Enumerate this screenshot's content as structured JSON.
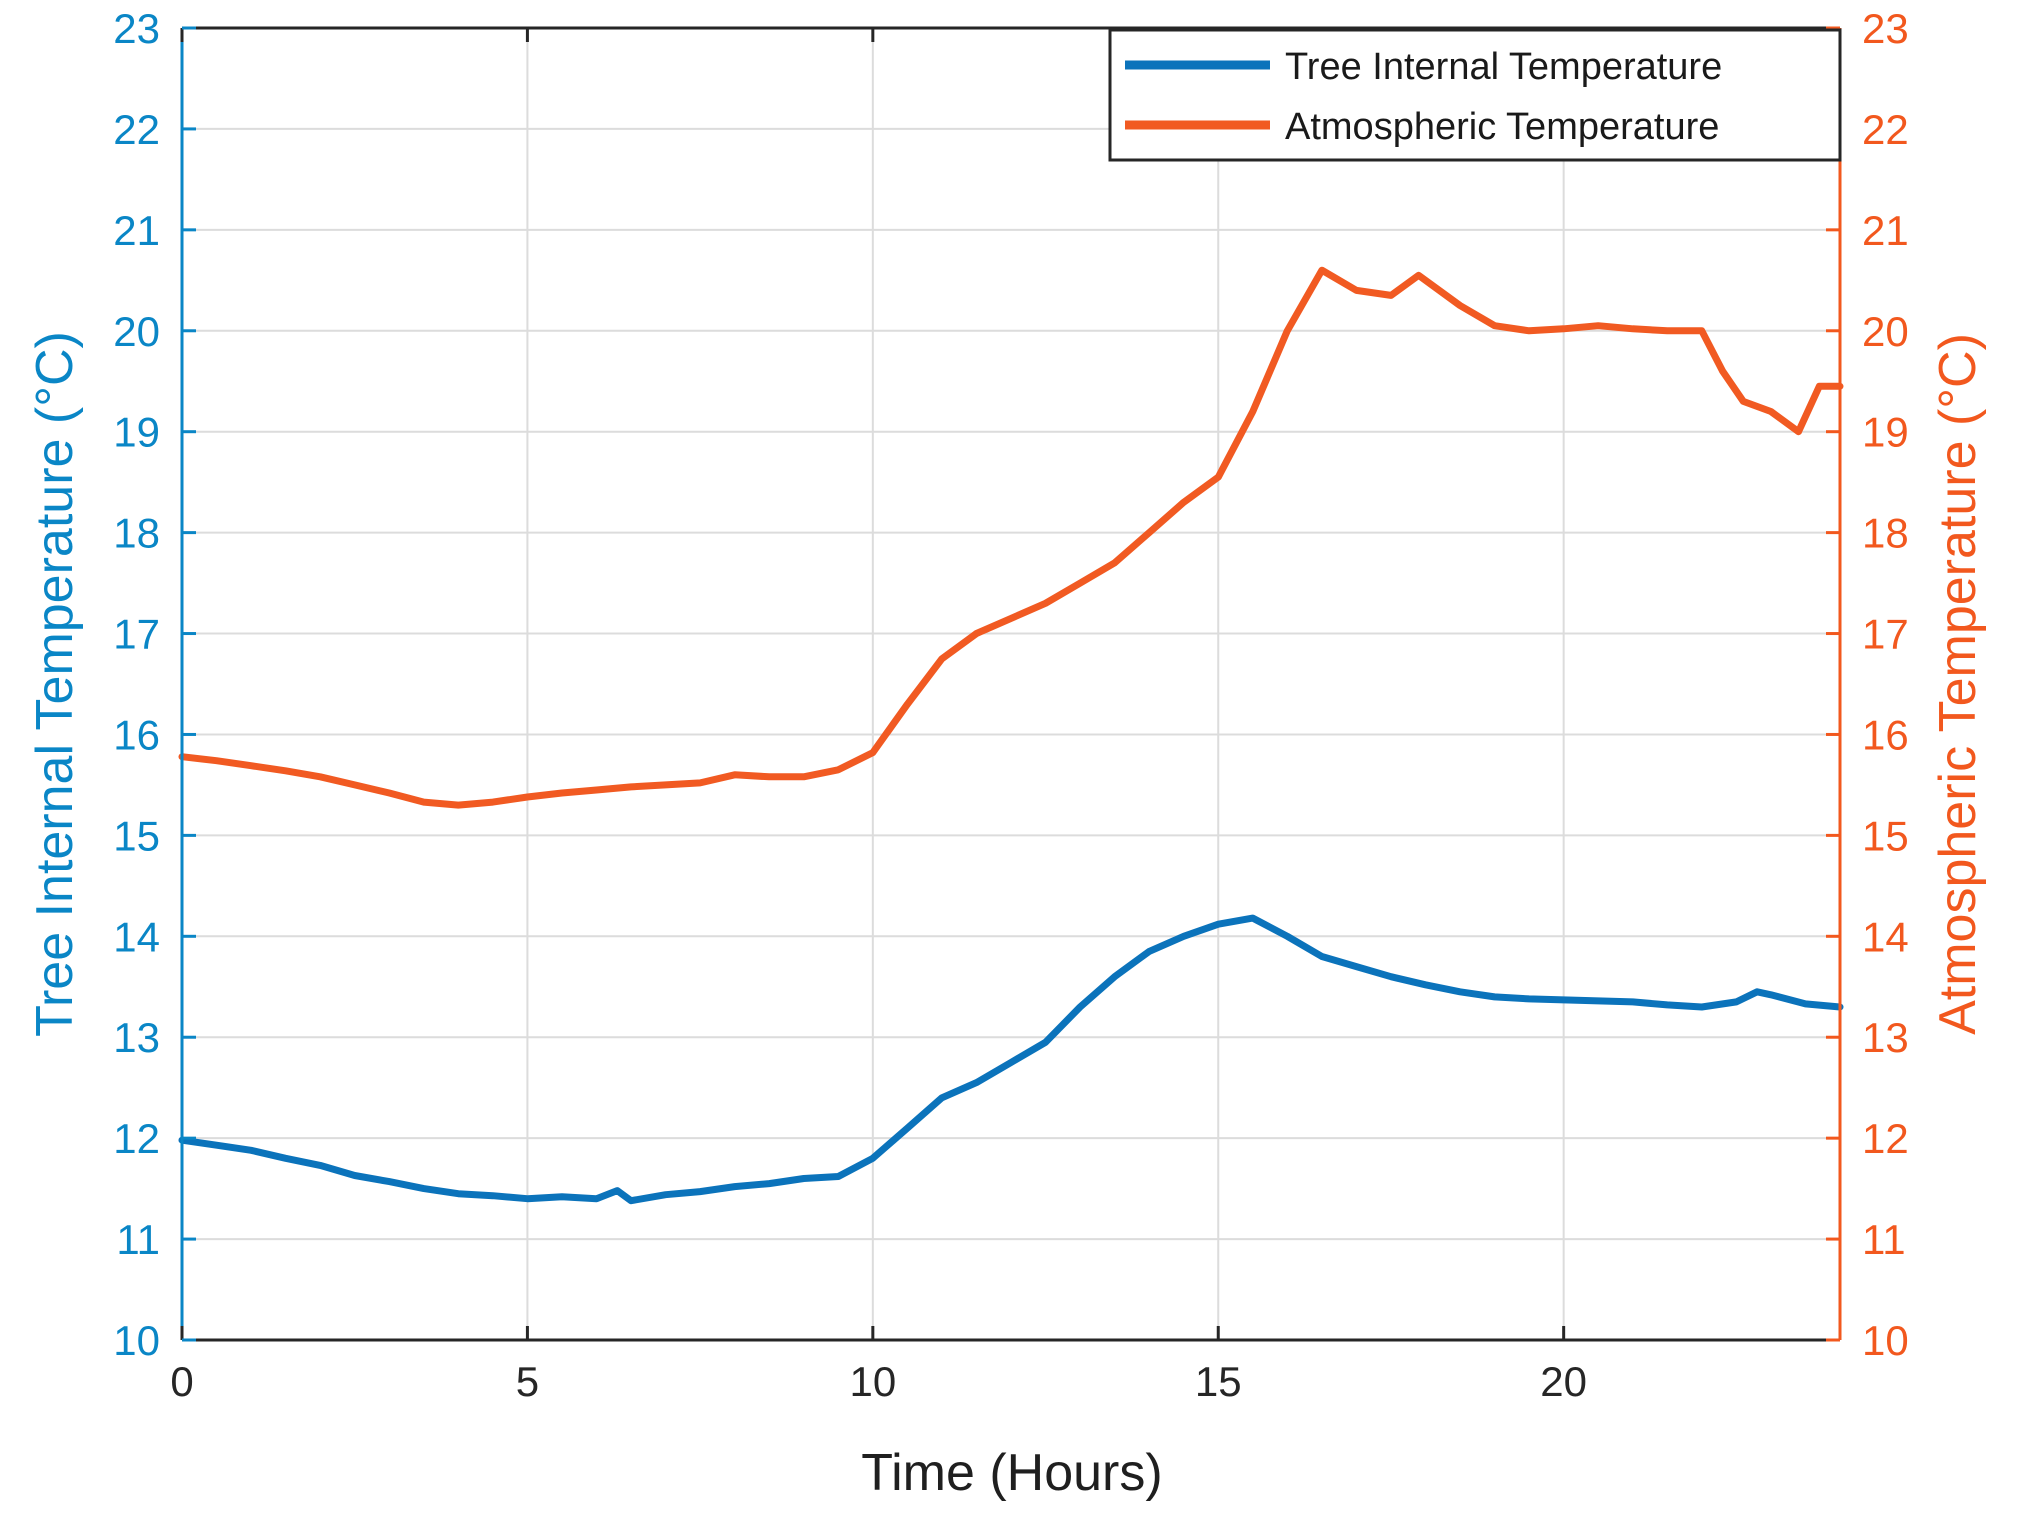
{
  "chart_data": {
    "type": "line",
    "title": "",
    "xlabel": "Time (Hours)",
    "ylabel_left": "Tree Internal Temperature (°C)",
    "ylabel_right": "Atmospheric Temperature (°C)",
    "xlim": [
      0,
      24
    ],
    "ylim_left": [
      10,
      23
    ],
    "ylim_right": [
      10,
      23
    ],
    "x_ticks": [
      0,
      5,
      10,
      15,
      20
    ],
    "y_ticks_left": [
      10,
      11,
      12,
      13,
      14,
      15,
      16,
      17,
      18,
      19,
      20,
      21,
      22,
      23
    ],
    "y_ticks_right": [
      10,
      11,
      12,
      13,
      14,
      15,
      16,
      17,
      18,
      19,
      20,
      21,
      22,
      23
    ],
    "grid": true,
    "legend_position": "top-right",
    "colors": {
      "left_axis": "#0a86c6",
      "right_axis": "#f2581e",
      "tree_series": "#0b73bb",
      "atmo_series": "#f15a22",
      "grid": "#dcdcdc"
    },
    "series": [
      {
        "name": "Tree Internal Temperature",
        "axis": "left",
        "color": "#0b73bb",
        "x": [
          0,
          0.5,
          1,
          1.5,
          2,
          2.5,
          3,
          3.5,
          4,
          4.5,
          5,
          5.5,
          6,
          6.3,
          6.5,
          7,
          7.5,
          8,
          8.5,
          9,
          9.5,
          10,
          10.5,
          11,
          11.5,
          12,
          12.5,
          13,
          13.5,
          14,
          14.5,
          15,
          15.5,
          16,
          16.5,
          17,
          17.5,
          18,
          18.5,
          19,
          19.5,
          20,
          20.5,
          21,
          21.5,
          22,
          22.5,
          22.8,
          23,
          23.5,
          24
        ],
        "y": [
          11.98,
          11.93,
          11.88,
          11.8,
          11.73,
          11.63,
          11.57,
          11.5,
          11.45,
          11.43,
          11.4,
          11.42,
          11.4,
          11.48,
          11.38,
          11.44,
          11.47,
          11.52,
          11.55,
          11.6,
          11.62,
          11.8,
          12.1,
          12.4,
          12.55,
          12.75,
          12.95,
          13.3,
          13.6,
          13.85,
          14.0,
          14.12,
          14.18,
          14.0,
          13.8,
          13.7,
          13.6,
          13.52,
          13.45,
          13.4,
          13.38,
          13.37,
          13.36,
          13.35,
          13.32,
          13.3,
          13.35,
          13.45,
          13.42,
          13.33,
          13.3
        ]
      },
      {
        "name": "Atmospheric Temperature",
        "axis": "right",
        "color": "#f15a22",
        "x": [
          0,
          0.5,
          1,
          1.5,
          2,
          2.5,
          3,
          3.5,
          4,
          4.5,
          5,
          5.5,
          6,
          6.5,
          7,
          7.5,
          8,
          8.5,
          9,
          9.5,
          10,
          10.5,
          11,
          11.5,
          12,
          12.5,
          13,
          13.5,
          14,
          14.5,
          15,
          15.5,
          16,
          16.5,
          17,
          17.5,
          17.9,
          18.5,
          19,
          19.5,
          20,
          20.5,
          21,
          21.5,
          22,
          22.3,
          22.6,
          23,
          23.4,
          23.7,
          24
        ],
        "y": [
          15.78,
          15.74,
          15.69,
          15.64,
          15.58,
          15.5,
          15.42,
          15.33,
          15.3,
          15.33,
          15.38,
          15.42,
          15.45,
          15.48,
          15.5,
          15.52,
          15.6,
          15.58,
          15.58,
          15.65,
          15.82,
          16.3,
          16.75,
          17.0,
          17.15,
          17.3,
          17.5,
          17.7,
          18.0,
          18.3,
          18.55,
          19.2,
          20.0,
          20.6,
          20.4,
          20.35,
          20.55,
          20.25,
          20.05,
          20.0,
          20.02,
          20.05,
          20.02,
          20.0,
          20.0,
          19.6,
          19.3,
          19.2,
          19.0,
          19.45,
          19.45
        ]
      }
    ]
  }
}
